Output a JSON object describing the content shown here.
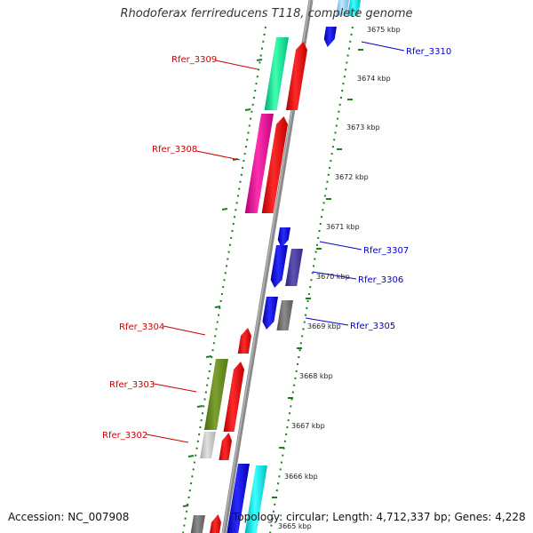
{
  "title": "Rhodoferax ferrireducens T118, complete genome",
  "accession": "Accession: NC_007908",
  "topology": "Topology: circular; Length: 4,712,337 bp; Genes: 4,228",
  "colors": {
    "backbone": "#8a8a8a",
    "ticks": "#1a7f1a",
    "forward_label": "#cc0000",
    "reverse_label": "#0000cc",
    "red": "#ff1a1a",
    "blue": "#1010ee",
    "cyan": "#19f0f0",
    "teal_green": "#20f0a0",
    "magenta": "#ff1aa8",
    "olive": "#6b8e23",
    "gray": "#7a7a7a",
    "light_gray": "#c8c8c8",
    "purple": "#4b3f9e",
    "light_blue": "#9bd6ff"
  },
  "kbp_labels": [
    {
      "text": "3675 kbp"
    },
    {
      "text": "3674 kbp"
    },
    {
      "text": "3673 kbp"
    },
    {
      "text": "3672 kbp"
    },
    {
      "text": "3671 kbp"
    },
    {
      "text": "3670 kbp"
    },
    {
      "text": "3669 kbp"
    },
    {
      "text": "3668 kbp"
    },
    {
      "text": "3667 kbp"
    },
    {
      "text": "3666 kbp"
    },
    {
      "text": "3665 kbp"
    }
  ],
  "gene_labels": [
    {
      "text": "Rfer_3310",
      "strand": "reverse"
    },
    {
      "text": "Rfer_3309",
      "strand": "forward"
    },
    {
      "text": "Rfer_3308",
      "strand": "forward"
    },
    {
      "text": "Rfer_3307",
      "strand": "reverse"
    },
    {
      "text": "Rfer_3306",
      "strand": "reverse"
    },
    {
      "text": "Rfer_3305",
      "strand": "reverse"
    },
    {
      "text": "Rfer_3304",
      "strand": "forward"
    },
    {
      "text": "Rfer_3303",
      "strand": "forward"
    },
    {
      "text": "Rfer_3302",
      "strand": "forward"
    }
  ]
}
